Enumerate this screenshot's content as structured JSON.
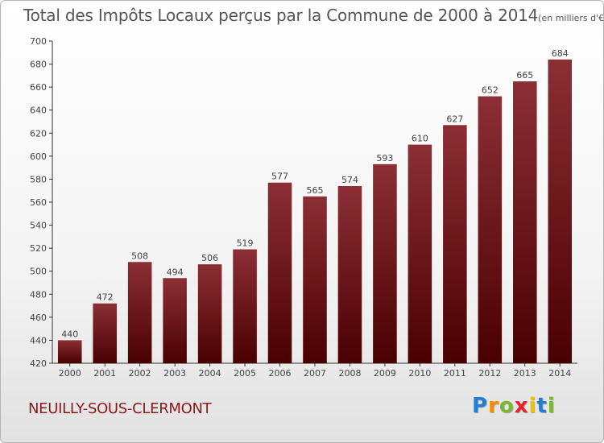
{
  "chart_data": {
    "type": "bar",
    "title": "Total des Impôts Locaux perçus par la Commune de 2000 à 2014",
    "subtitle": "(en milliers d'€)",
    "xlabel": "",
    "ylabel": "",
    "categories": [
      "2000",
      "2001",
      "2002",
      "2003",
      "2004",
      "2005",
      "2006",
      "2007",
      "2008",
      "2009",
      "2010",
      "2011",
      "2012",
      "2013",
      "2014"
    ],
    "values": [
      440,
      472,
      508,
      494,
      506,
      519,
      577,
      565,
      574,
      593,
      610,
      627,
      652,
      665,
      684
    ],
    "data_labels": [
      "440",
      "472",
      "508",
      "494",
      "506",
      "519",
      "577",
      "565",
      "574",
      "593",
      "610",
      "627",
      "652",
      "665",
      "684"
    ],
    "ylim": [
      420,
      700
    ],
    "yticks": [
      "420",
      "440",
      "460",
      "480",
      "500",
      "520",
      "540",
      "560",
      "580",
      "600",
      "620",
      "640",
      "660",
      "680",
      "700"
    ],
    "grid": false,
    "bar_color_top": "#8b2f35",
    "bar_color_bottom": "#4a0000"
  },
  "footer": {
    "commune": "NEUILLY-SOUS-CLERMONT",
    "logo_text": "Proxiti",
    "logo_colors": [
      "#1f7fd6",
      "#f28c00",
      "#7cb82f",
      "#e0262b",
      "#f2c200",
      "#1f7fd6",
      "#7cb82f"
    ]
  }
}
